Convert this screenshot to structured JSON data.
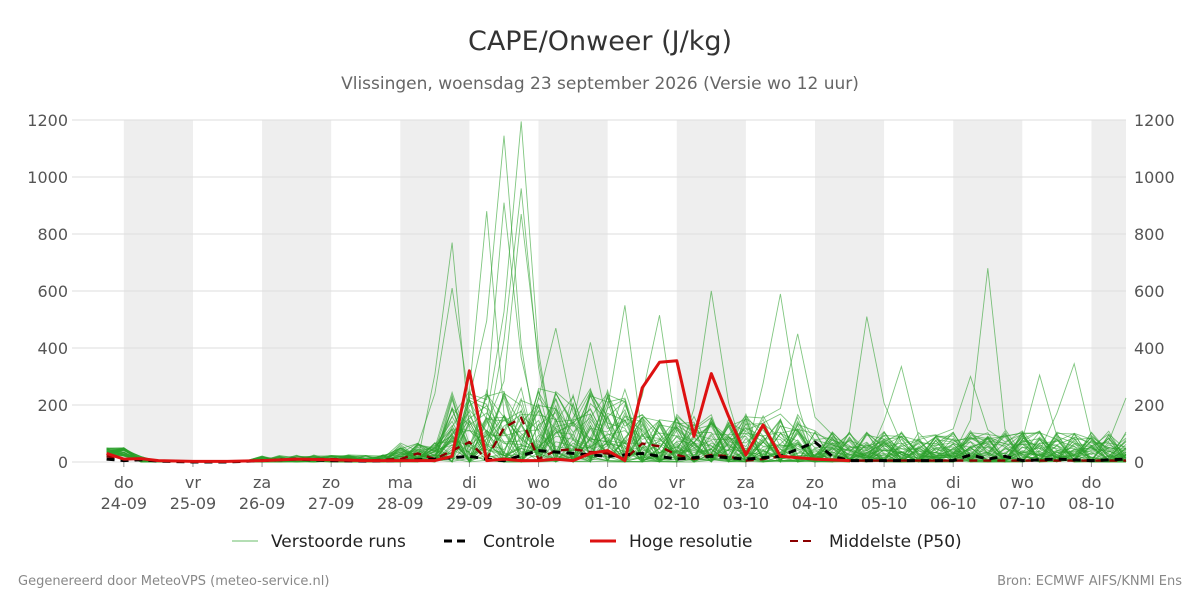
{
  "chart_data": {
    "type": "line",
    "title": "CAPE/Onweer (J/kg)",
    "subtitle": "Vlissingen, woensdag 23 september 2026 (Versie wo 12 uur)",
    "ylim": [
      0,
      1200
    ],
    "yticks": [
      0,
      200,
      400,
      600,
      800,
      1000,
      1200
    ],
    "y_axis_both_sides": true,
    "grid": "horizontal",
    "legend": "bottom-center",
    "x_start_day": 0,
    "x_end_day": 14.5,
    "day_labels": [
      {
        "day": "do",
        "date": "24-09"
      },
      {
        "day": "vr",
        "date": "25-09"
      },
      {
        "day": "za",
        "date": "26-09"
      },
      {
        "day": "zo",
        "date": "27-09"
      },
      {
        "day": "ma",
        "date": "28-09"
      },
      {
        "day": "di",
        "date": "29-09"
      },
      {
        "day": "wo",
        "date": "30-09"
      },
      {
        "day": "do",
        "date": "01-10"
      },
      {
        "day": "vr",
        "date": "02-10"
      },
      {
        "day": "za",
        "date": "03-10"
      },
      {
        "day": "zo",
        "date": "04-10"
      },
      {
        "day": "ma",
        "date": "05-10"
      },
      {
        "day": "di",
        "date": "06-10"
      },
      {
        "day": "wo",
        "date": "07-10"
      },
      {
        "day": "do",
        "date": "08-10"
      }
    ],
    "shaded_day_indices": [
      0,
      2,
      4,
      6,
      8,
      10,
      12,
      14
    ],
    "series": [
      {
        "name": "Controle",
        "style": "dashed",
        "color": "#000000",
        "points": [
          [
            -0.25,
            10
          ],
          [
            0,
            5
          ],
          [
            0.25,
            8
          ],
          [
            0.5,
            3
          ],
          [
            1,
            0
          ],
          [
            1.5,
            0
          ],
          [
            2,
            5
          ],
          [
            2.5,
            10
          ],
          [
            3,
            5
          ],
          [
            3.5,
            3
          ],
          [
            4,
            5
          ],
          [
            4.5,
            10
          ],
          [
            5,
            20
          ],
          [
            5.25,
            10
          ],
          [
            5.5,
            5
          ],
          [
            6,
            40
          ],
          [
            6.5,
            30
          ],
          [
            7,
            20
          ],
          [
            7.5,
            30
          ],
          [
            8,
            10
          ],
          [
            8.5,
            20
          ],
          [
            9,
            10
          ],
          [
            9.5,
            20
          ],
          [
            10,
            70
          ],
          [
            10.25,
            20
          ],
          [
            10.5,
            5
          ],
          [
            11,
            5
          ],
          [
            11.5,
            5
          ],
          [
            12,
            5
          ],
          [
            12.25,
            25
          ],
          [
            12.5,
            10
          ],
          [
            12.75,
            20
          ],
          [
            13,
            5
          ],
          [
            13.5,
            10
          ],
          [
            14,
            5
          ],
          [
            14.5,
            10
          ]
        ]
      },
      {
        "name": "Hoge resolutie",
        "style": "solid",
        "color": "#dd1111",
        "points": [
          [
            -0.25,
            30
          ],
          [
            0,
            10
          ],
          [
            0.25,
            12
          ],
          [
            0.5,
            5
          ],
          [
            1,
            2
          ],
          [
            1.5,
            2
          ],
          [
            2,
            5
          ],
          [
            2.5,
            10
          ],
          [
            3,
            8
          ],
          [
            3.5,
            5
          ],
          [
            4,
            5
          ],
          [
            4.5,
            5
          ],
          [
            4.75,
            20
          ],
          [
            5,
            320
          ],
          [
            5.25,
            5
          ],
          [
            5.5,
            10
          ],
          [
            5.75,
            5
          ],
          [
            6,
            5
          ],
          [
            6.25,
            10
          ],
          [
            6.5,
            5
          ],
          [
            6.75,
            30
          ],
          [
            7,
            40
          ],
          [
            7.25,
            5
          ],
          [
            7.5,
            260
          ],
          [
            7.75,
            350
          ],
          [
            8,
            355
          ],
          [
            8.25,
            90
          ],
          [
            8.5,
            310
          ],
          [
            8.75,
            160
          ],
          [
            9,
            25
          ],
          [
            9.25,
            130
          ],
          [
            9.5,
            20
          ],
          [
            10,
            10
          ],
          [
            10.5,
            5
          ]
        ]
      },
      {
        "name": "Middelste (P50)",
        "style": "dashed",
        "color": "#8b0000",
        "points": [
          [
            -0.25,
            20
          ],
          [
            0,
            10
          ],
          [
            0.5,
            5
          ],
          [
            1,
            0
          ],
          [
            1.5,
            0
          ],
          [
            2,
            5
          ],
          [
            2.5,
            10
          ],
          [
            3,
            10
          ],
          [
            3.5,
            5
          ],
          [
            4,
            10
          ],
          [
            4.25,
            30
          ],
          [
            4.5,
            10
          ],
          [
            5,
            70
          ],
          [
            5.25,
            10
          ],
          [
            5.5,
            120
          ],
          [
            5.75,
            155
          ],
          [
            6,
            10
          ],
          [
            6.25,
            40
          ],
          [
            6.5,
            45
          ],
          [
            6.75,
            35
          ],
          [
            7,
            30
          ],
          [
            7.25,
            10
          ],
          [
            7.5,
            65
          ],
          [
            7.75,
            55
          ],
          [
            8,
            25
          ],
          [
            8.25,
            10
          ],
          [
            8.5,
            25
          ],
          [
            8.75,
            20
          ],
          [
            9,
            5
          ],
          [
            9.25,
            10
          ],
          [
            9.5,
            20
          ],
          [
            10,
            10
          ],
          [
            10.5,
            5
          ],
          [
            11,
            5
          ],
          [
            11.5,
            5
          ],
          [
            12,
            5
          ],
          [
            12.5,
            5
          ],
          [
            13,
            5
          ],
          [
            13.5,
            5
          ],
          [
            14,
            5
          ],
          [
            14.5,
            5
          ]
        ]
      }
    ],
    "ensemble": {
      "name": "Verstoorde runs",
      "color": "#2ca02c",
      "member_count": 50,
      "x_step_days": 0.25,
      "peaks": [
        {
          "day": 4.75,
          "value": 770
        },
        {
          "day": 4.75,
          "value": 610
        },
        {
          "day": 5.25,
          "value": 880
        },
        {
          "day": 5.5,
          "value": 1145
        },
        {
          "day": 5.75,
          "value": 1195
        },
        {
          "day": 5.75,
          "value": 960
        },
        {
          "day": 5.5,
          "value": 910
        },
        {
          "day": 5.75,
          "value": 870
        },
        {
          "day": 6.25,
          "value": 470
        },
        {
          "day": 6.75,
          "value": 420
        },
        {
          "day": 7.25,
          "value": 550
        },
        {
          "day": 7.75,
          "value": 515
        },
        {
          "day": 8.5,
          "value": 600
        },
        {
          "day": 9.5,
          "value": 590
        },
        {
          "day": 9.75,
          "value": 450
        },
        {
          "day": 10.75,
          "value": 510
        },
        {
          "day": 11.25,
          "value": 335
        },
        {
          "day": 12.5,
          "value": 680
        },
        {
          "day": 12.25,
          "value": 300
        },
        {
          "day": 13.25,
          "value": 305
        },
        {
          "day": 13.75,
          "value": 345
        },
        {
          "day": 14.5,
          "value": 225
        }
      ]
    }
  },
  "legend": {
    "items": [
      {
        "label": "Verstoorde runs",
        "color": "#2ca02c",
        "style": "thin"
      },
      {
        "label": "Controle",
        "color": "#000000",
        "style": "dashed"
      },
      {
        "label": "Hoge resolutie",
        "color": "#dd1111",
        "style": "solid"
      },
      {
        "label": "Middelste (P50)",
        "color": "#8b0000",
        "style": "dashed"
      }
    ]
  },
  "footer": {
    "left": "Gegenereerd door MeteoVPS (meteo-service.nl)",
    "right": "Bron: ECMWF AIFS/KNMI Ens"
  }
}
